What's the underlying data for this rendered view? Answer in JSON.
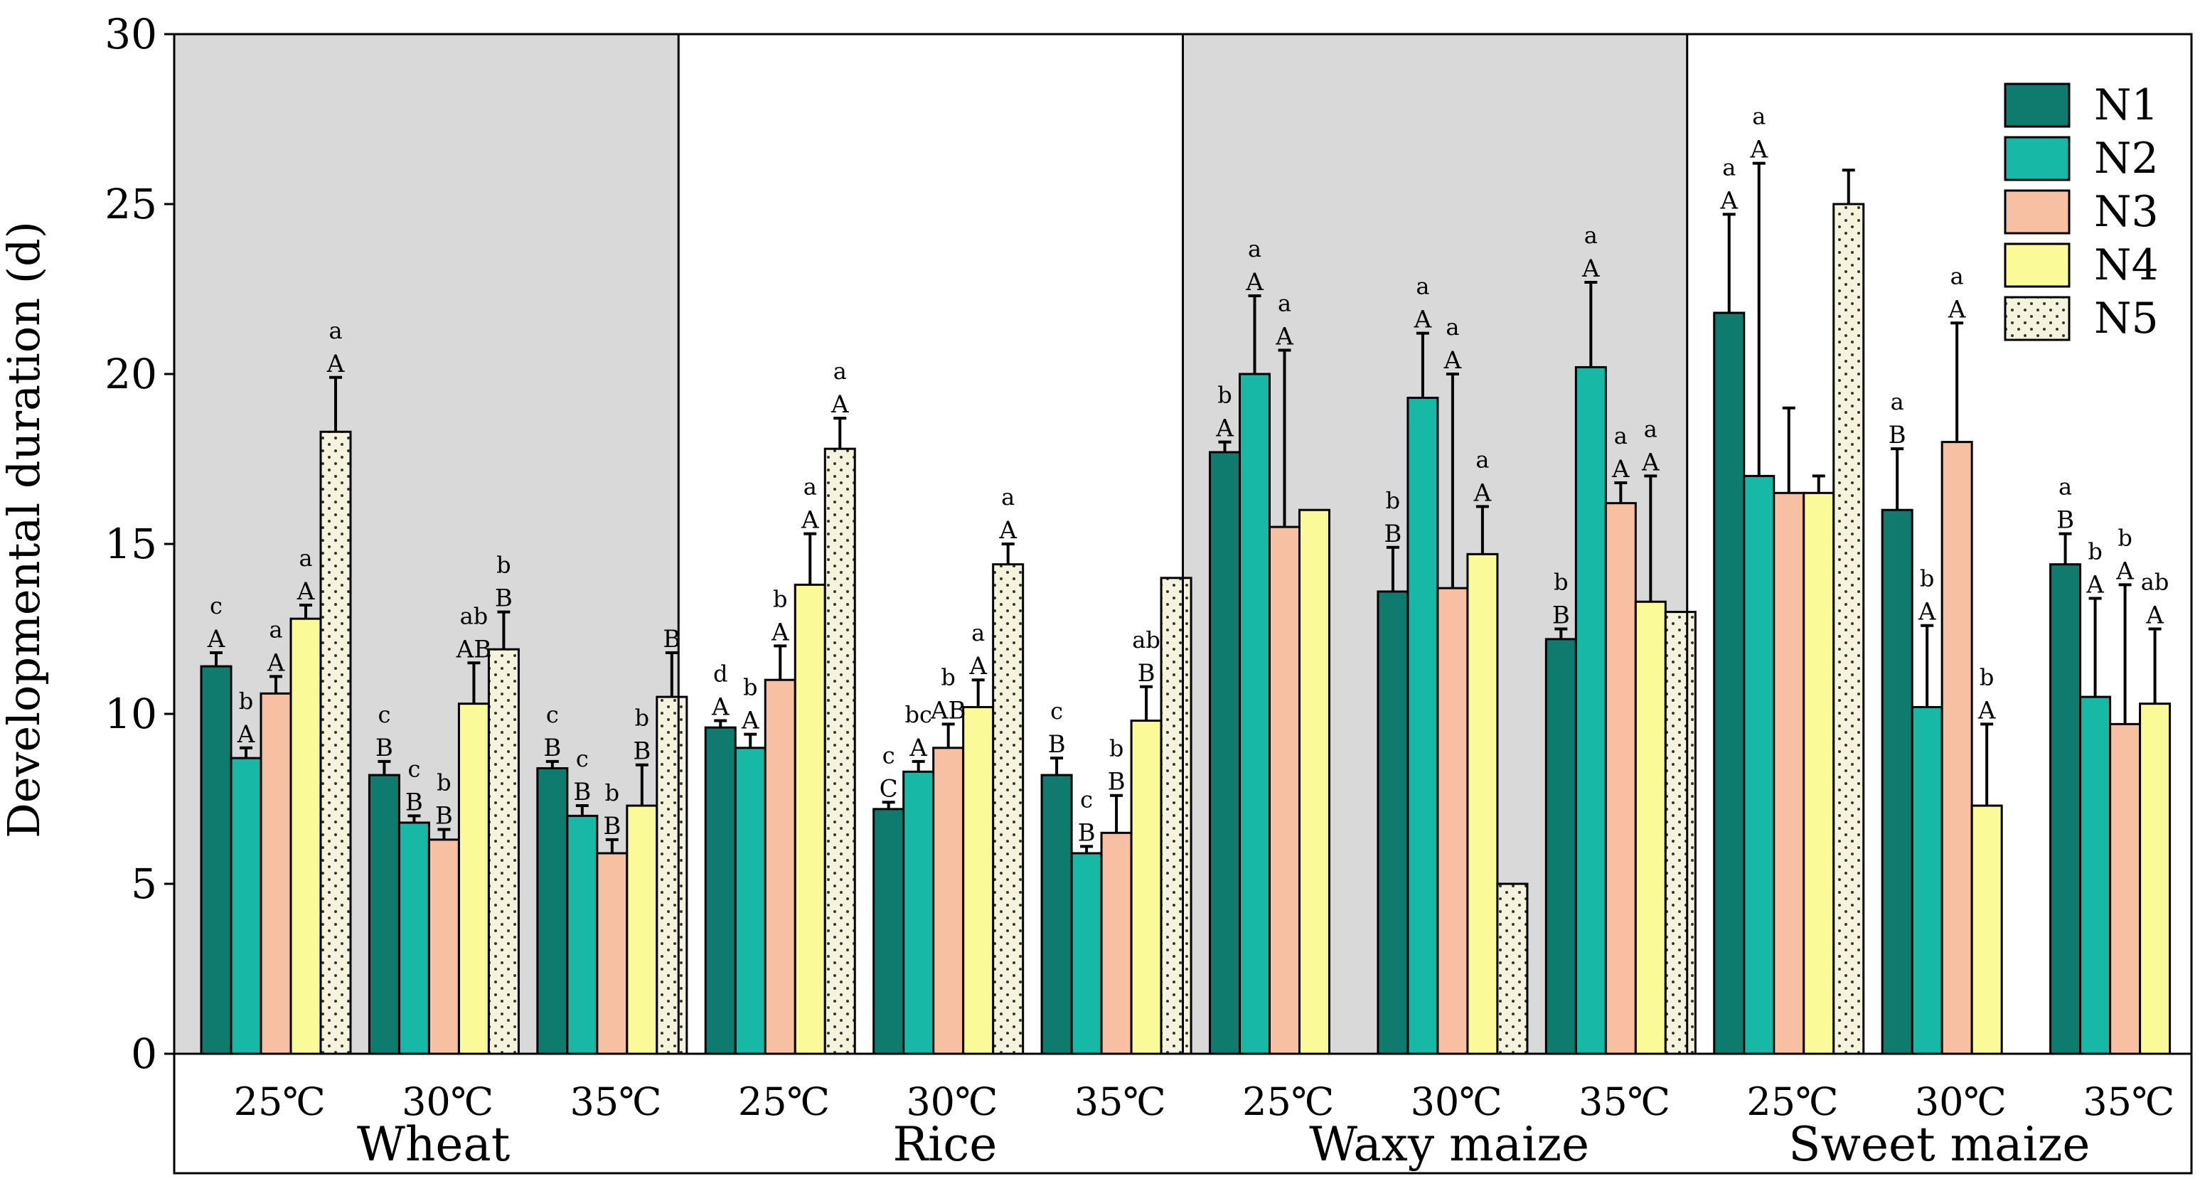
{
  "chart_data": {
    "type": "bar",
    "ylabel": "Developmental duration (d)",
    "ylim": [
      0,
      30
    ],
    "yticks": [
      0,
      5,
      10,
      15,
      20,
      25,
      30
    ],
    "crops": [
      "Wheat",
      "Rice",
      "Waxy maize",
      "Sweet maize"
    ],
    "temperatures": [
      "25℃",
      "30℃",
      "35℃"
    ],
    "legend": {
      "position": "top-right",
      "entries": [
        "N1",
        "N2",
        "N3",
        "N4",
        "N5"
      ]
    },
    "colors": {
      "N1": "#0f7a6e",
      "N2": "#17b8a6",
      "N3": "#f8c0a2",
      "N4": "#fafa99",
      "N5": "#f6f3dc",
      "shade": "#d9d9d9",
      "axis": "#000000"
    },
    "groups": [
      {
        "crop": "Wheat",
        "temp": "25℃",
        "bars": [
          {
            "series": "N1",
            "value": 11.4,
            "err": 0.4,
            "upper": "c",
            "lower": "A"
          },
          {
            "series": "N2",
            "value": 8.7,
            "err": 0.3,
            "upper": "b",
            "lower": "A"
          },
          {
            "series": "N3",
            "value": 10.6,
            "err": 0.5,
            "upper": "a",
            "lower": "A"
          },
          {
            "series": "N4",
            "value": 12.8,
            "err": 0.4,
            "upper": "a",
            "lower": "A"
          },
          {
            "series": "N5",
            "value": 18.3,
            "err": 1.6,
            "upper": "a",
            "lower": "A"
          }
        ]
      },
      {
        "crop": "Wheat",
        "temp": "30℃",
        "bars": [
          {
            "series": "N1",
            "value": 8.2,
            "err": 0.4,
            "upper": "c",
            "lower": "B"
          },
          {
            "series": "N2",
            "value": 6.8,
            "err": 0.2,
            "upper": "c",
            "lower": "B"
          },
          {
            "series": "N3",
            "value": 6.3,
            "err": 0.3,
            "upper": "b",
            "lower": "B"
          },
          {
            "series": "N4",
            "value": 10.3,
            "err": 1.2,
            "upper": "ab",
            "lower": "AB"
          },
          {
            "series": "N5",
            "value": 11.9,
            "err": 1.1,
            "upper": "b",
            "lower": "B"
          }
        ]
      },
      {
        "crop": "Wheat",
        "temp": "35℃",
        "bars": [
          {
            "series": "N1",
            "value": 8.4,
            "err": 0.2,
            "upper": "c",
            "lower": "B"
          },
          {
            "series": "N2",
            "value": 7.0,
            "err": 0.3,
            "upper": "c",
            "lower": "B"
          },
          {
            "series": "N3",
            "value": 5.9,
            "err": 0.4,
            "upper": "b",
            "lower": "B"
          },
          {
            "series": "N4",
            "value": 7.3,
            "err": 1.2,
            "upper": "b",
            "lower": "B"
          },
          {
            "series": "N5",
            "value": 10.5,
            "err": 1.3,
            "upper": "",
            "lower": "B"
          }
        ]
      },
      {
        "crop": "Rice",
        "temp": "25℃",
        "bars": [
          {
            "series": "N1",
            "value": 9.6,
            "err": 0.2,
            "upper": "d",
            "lower": "A"
          },
          {
            "series": "N2",
            "value": 9.0,
            "err": 0.4,
            "upper": "b",
            "lower": "A"
          },
          {
            "series": "N3",
            "value": 11.0,
            "err": 1.0,
            "upper": "b",
            "lower": "A"
          },
          {
            "series": "N4",
            "value": 13.8,
            "err": 1.5,
            "upper": "a",
            "lower": "A"
          },
          {
            "series": "N5",
            "value": 17.8,
            "err": 0.9,
            "upper": "a",
            "lower": "A"
          }
        ]
      },
      {
        "crop": "Rice",
        "temp": "30℃",
        "bars": [
          {
            "series": "N1",
            "value": 7.2,
            "err": 0.2,
            "upper": "c",
            "lower": "C"
          },
          {
            "series": "N2",
            "value": 8.3,
            "err": 0.3,
            "upper": "bc",
            "lower": "A"
          },
          {
            "series": "N3",
            "value": 9.0,
            "err": 0.7,
            "upper": "b",
            "lower": "AB"
          },
          {
            "series": "N4",
            "value": 10.2,
            "err": 0.8,
            "upper": "a",
            "lower": "A"
          },
          {
            "series": "N5",
            "value": 14.4,
            "err": 0.6,
            "upper": "a",
            "lower": "A"
          }
        ]
      },
      {
        "crop": "Rice",
        "temp": "35℃",
        "bars": [
          {
            "series": "N1",
            "value": 8.2,
            "err": 0.5,
            "upper": "c",
            "lower": "B"
          },
          {
            "series": "N2",
            "value": 5.9,
            "err": 0.2,
            "upper": "c",
            "lower": "B"
          },
          {
            "series": "N3",
            "value": 6.5,
            "err": 1.1,
            "upper": "b",
            "lower": "B"
          },
          {
            "series": "N4",
            "value": 9.8,
            "err": 1.0,
            "upper": "ab",
            "lower": "B"
          },
          {
            "series": "N5",
            "value": 14.0,
            "err": 0,
            "upper": "",
            "lower": ""
          }
        ]
      },
      {
        "crop": "Waxy maize",
        "temp": "25℃",
        "bars": [
          {
            "series": "N1",
            "value": 17.7,
            "err": 0.3,
            "upper": "b",
            "lower": "A"
          },
          {
            "series": "N2",
            "value": 20.0,
            "err": 2.3,
            "upper": "a",
            "lower": "A"
          },
          {
            "series": "N3",
            "value": 15.5,
            "err": 5.2,
            "upper": "a",
            "lower": "A"
          },
          {
            "series": "N4",
            "value": 16.0,
            "err": 0,
            "upper": "",
            "lower": ""
          },
          {
            "series": "N5",
            "value": null,
            "err": 0,
            "upper": "",
            "lower": ""
          }
        ]
      },
      {
        "crop": "Waxy maize",
        "temp": "30℃",
        "bars": [
          {
            "series": "N1",
            "value": 13.6,
            "err": 1.3,
            "upper": "b",
            "lower": "B"
          },
          {
            "series": "N2",
            "value": 19.3,
            "err": 1.9,
            "upper": "a",
            "lower": "A"
          },
          {
            "series": "N3",
            "value": 13.7,
            "err": 6.3,
            "upper": "a",
            "lower": "A"
          },
          {
            "series": "N4",
            "value": 14.7,
            "err": 1.4,
            "upper": "a",
            "lower": "A"
          },
          {
            "series": "N5",
            "value": 5.0,
            "err": 0,
            "upper": "",
            "lower": ""
          }
        ]
      },
      {
        "crop": "Waxy maize",
        "temp": "35℃",
        "bars": [
          {
            "series": "N1",
            "value": 12.2,
            "err": 0.3,
            "upper": "b",
            "lower": "B"
          },
          {
            "series": "N2",
            "value": 20.2,
            "err": 2.5,
            "upper": "a",
            "lower": "A"
          },
          {
            "series": "N3",
            "value": 16.2,
            "err": 0.6,
            "upper": "a",
            "lower": "A"
          },
          {
            "series": "N4",
            "value": 13.3,
            "err": 3.7,
            "upper": "a",
            "lower": "A"
          },
          {
            "series": "N5",
            "value": 13.0,
            "err": 0,
            "upper": "",
            "lower": ""
          }
        ]
      },
      {
        "crop": "Sweet maize",
        "temp": "25℃",
        "bars": [
          {
            "series": "N1",
            "value": 21.8,
            "err": 2.9,
            "upper": "a",
            "lower": "A"
          },
          {
            "series": "N2",
            "value": 17.0,
            "err": 9.2,
            "upper": "a",
            "lower": "A"
          },
          {
            "series": "N3",
            "value": 16.5,
            "err": 2.5,
            "upper": "",
            "lower": ""
          },
          {
            "series": "N4",
            "value": 16.5,
            "err": 0.5,
            "upper": "",
            "lower": ""
          },
          {
            "series": "N5",
            "value": 25.0,
            "err": 1.0,
            "upper": "",
            "lower": ""
          }
        ]
      },
      {
        "crop": "Sweet maize",
        "temp": "30℃",
        "bars": [
          {
            "series": "N1",
            "value": 16.0,
            "err": 1.8,
            "upper": "a",
            "lower": "B"
          },
          {
            "series": "N2",
            "value": 10.2,
            "err": 2.4,
            "upper": "b",
            "lower": "A"
          },
          {
            "series": "N3",
            "value": 18.0,
            "err": 3.5,
            "upper": "a",
            "lower": "A"
          },
          {
            "series": "N4",
            "value": 7.3,
            "err": 2.4,
            "upper": "b",
            "lower": "A"
          },
          {
            "series": "N5",
            "value": null,
            "err": 0,
            "upper": "",
            "lower": ""
          }
        ]
      },
      {
        "crop": "Sweet maize",
        "temp": "35℃",
        "bars": [
          {
            "series": "N1",
            "value": 14.4,
            "err": 0.9,
            "upper": "a",
            "lower": "B"
          },
          {
            "series": "N2",
            "value": 10.5,
            "err": 2.9,
            "upper": "b",
            "lower": "A"
          },
          {
            "series": "N3",
            "value": 9.7,
            "err": 4.1,
            "upper": "b",
            "lower": "A"
          },
          {
            "series": "N4",
            "value": 10.3,
            "err": 2.2,
            "upper": "ab",
            "lower": "A"
          },
          {
            "series": "N5",
            "value": null,
            "err": 0,
            "upper": "",
            "lower": ""
          }
        ]
      }
    ]
  }
}
